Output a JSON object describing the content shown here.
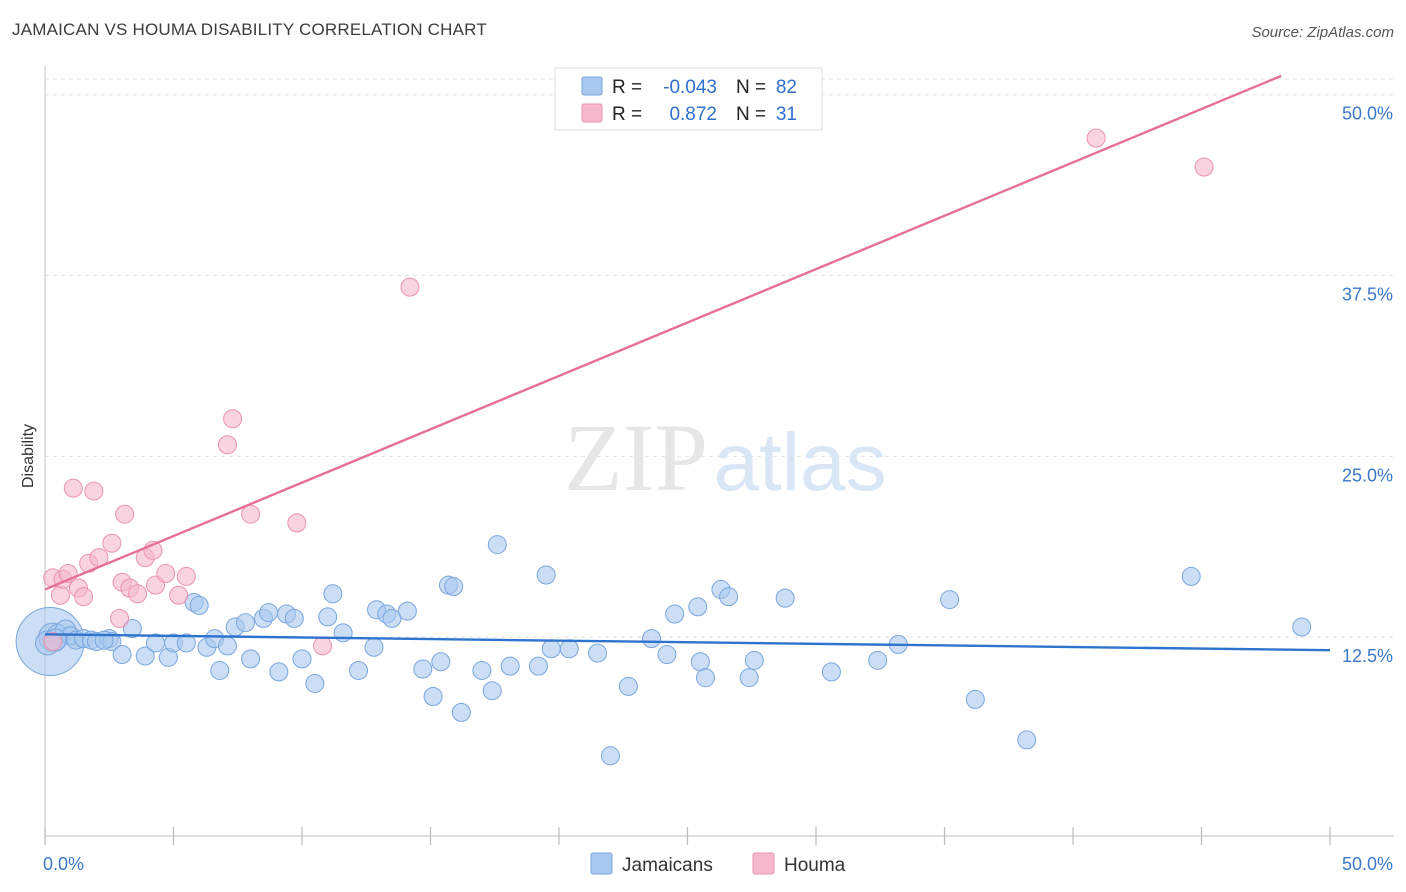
{
  "title": "JAMAICAN VS HOUMA DISABILITY CORRELATION CHART",
  "source": "Source: ZipAtlas.com",
  "watermark": {
    "zip": "ZIP",
    "atlas": "atlas"
  },
  "legend_top": {
    "rows": [
      {
        "r_label": "R =",
        "r_value": "-0.043",
        "n_label": "N =",
        "n_value": "82",
        "color": "#a9c8ef"
      },
      {
        "r_label": "R =",
        "r_value": "0.872",
        "n_label": "N =",
        "n_value": "31",
        "color": "#f5b8cc"
      }
    ]
  },
  "legend_bottom": {
    "items": [
      {
        "label": "Jamaicans",
        "color": "#a9c8ef"
      },
      {
        "label": "Houma",
        "color": "#f5b8cc"
      }
    ]
  },
  "chart_data": {
    "type": "scatter",
    "title": "JAMAICAN VS HOUMA DISABILITY CORRELATION CHART",
    "xlabel": "",
    "ylabel": "Disability",
    "xlim": [
      0,
      50
    ],
    "ylim": [
      0,
      51.5
    ],
    "x_tick_labels": [
      {
        "value": 0,
        "label": "0.0%"
      },
      {
        "value": 50,
        "label": "50.0%"
      }
    ],
    "y_ticks": [
      {
        "value": 12.5,
        "label": "12.5%"
      },
      {
        "value": 25,
        "label": "25.0%"
      },
      {
        "value": 37.5,
        "label": "37.5%"
      },
      {
        "value": 50,
        "label": "50.0%"
      }
    ],
    "series": [
      {
        "name": "Jamaicans",
        "color": "#a9c8ef",
        "stroke": "#7aa6de",
        "trend_color": "#2e74cf",
        "trend": {
          "x": [
            0,
            50
          ],
          "y": [
            12.7,
            11.6
          ]
        },
        "points": [
          [
            0.2,
            12.2
          ],
          [
            0.3,
            12.5
          ],
          [
            0.5,
            12.7
          ],
          [
            0.8,
            13.0
          ],
          [
            1.0,
            12.6
          ],
          [
            1.2,
            12.3
          ],
          [
            1.5,
            12.4
          ],
          [
            1.8,
            12.3
          ],
          [
            2.0,
            12.2
          ],
          [
            2.5,
            12.4
          ],
          [
            2.6,
            12.2
          ],
          [
            3.0,
            11.3
          ],
          [
            3.4,
            13.1
          ],
          [
            3.9,
            11.2
          ],
          [
            4.3,
            12.1
          ],
          [
            4.8,
            11.1
          ],
          [
            5.0,
            12.1
          ],
          [
            5.5,
            12.1
          ],
          [
            5.8,
            14.9
          ],
          [
            6.0,
            14.7
          ],
          [
            6.3,
            11.8
          ],
          [
            6.6,
            12.4
          ],
          [
            6.8,
            10.2
          ],
          [
            7.1,
            11.9
          ],
          [
            7.4,
            13.2
          ],
          [
            7.8,
            13.5
          ],
          [
            8.0,
            11.0
          ],
          [
            8.5,
            13.8
          ],
          [
            8.7,
            14.2
          ],
          [
            9.1,
            10.1
          ],
          [
            9.4,
            14.1
          ],
          [
            9.7,
            13.8
          ],
          [
            10.0,
            11.0
          ],
          [
            10.5,
            9.3
          ],
          [
            11.0,
            13.9
          ],
          [
            11.2,
            15.5
          ],
          [
            11.6,
            12.8
          ],
          [
            12.2,
            10.2
          ],
          [
            12.8,
            11.8
          ],
          [
            12.9,
            14.4
          ],
          [
            13.3,
            14.1
          ],
          [
            13.5,
            13.8
          ],
          [
            14.1,
            14.3
          ],
          [
            14.7,
            10.3
          ],
          [
            15.1,
            8.4
          ],
          [
            15.4,
            10.8
          ],
          [
            15.7,
            16.1
          ],
          [
            15.9,
            16.0
          ],
          [
            16.2,
            7.3
          ],
          [
            17.0,
            10.2
          ],
          [
            17.4,
            8.8
          ],
          [
            17.6,
            18.9
          ],
          [
            18.1,
            10.5
          ],
          [
            19.2,
            10.5
          ],
          [
            19.5,
            16.8
          ],
          [
            19.7,
            11.7
          ],
          [
            20.4,
            11.7
          ],
          [
            21.5,
            11.4
          ],
          [
            22.0,
            4.3
          ],
          [
            22.7,
            9.1
          ],
          [
            23.6,
            12.4
          ],
          [
            24.2,
            11.3
          ],
          [
            24.5,
            14.1
          ],
          [
            25.4,
            14.6
          ],
          [
            25.5,
            10.8
          ],
          [
            25.7,
            9.7
          ],
          [
            26.3,
            15.8
          ],
          [
            26.6,
            15.3
          ],
          [
            27.4,
            9.7
          ],
          [
            27.6,
            10.9
          ],
          [
            28.8,
            15.2
          ],
          [
            30.6,
            10.1
          ],
          [
            32.4,
            10.9
          ],
          [
            33.2,
            12.0
          ],
          [
            35.2,
            15.1
          ],
          [
            36.2,
            8.2
          ],
          [
            38.2,
            5.4
          ],
          [
            44.6,
            16.7
          ],
          [
            48.9,
            13.2
          ],
          [
            0.1,
            12.1
          ],
          [
            0.4,
            12.3
          ],
          [
            2.3,
            12.3
          ]
        ],
        "sizes": [
          34,
          14,
          10,
          10,
          9,
          9,
          9,
          9,
          9,
          9,
          9,
          9,
          9,
          9,
          9,
          9,
          9,
          9,
          9,
          9,
          9,
          9,
          9,
          9,
          9,
          9,
          9,
          9,
          9,
          9,
          9,
          9,
          9,
          9,
          9,
          9,
          9,
          9,
          9,
          9,
          9,
          9,
          9,
          9,
          9,
          9,
          9,
          9,
          9,
          9,
          9,
          9,
          9,
          9,
          9,
          9,
          9,
          9,
          9,
          9,
          9,
          9,
          9,
          9,
          9,
          9,
          9,
          9,
          9,
          9,
          9,
          9,
          9,
          9,
          9,
          9,
          9,
          9,
          9,
          12,
          11,
          9
        ]
      },
      {
        "name": "Houma",
        "color": "#f5b8cc",
        "stroke": "#ec93b0",
        "trend_color": "#e46f98",
        "trend": {
          "x": [
            0,
            48.1
          ],
          "y": [
            15.8,
            51.3
          ]
        },
        "points": [
          [
            0.3,
            12.2
          ],
          [
            0.3,
            16.6
          ],
          [
            0.6,
            15.4
          ],
          [
            0.7,
            16.5
          ],
          [
            0.9,
            16.9
          ],
          [
            1.1,
            22.8
          ],
          [
            1.3,
            15.9
          ],
          [
            1.5,
            15.3
          ],
          [
            1.7,
            17.6
          ],
          [
            1.9,
            22.6
          ],
          [
            2.1,
            18.0
          ],
          [
            2.6,
            19.0
          ],
          [
            2.9,
            13.8
          ],
          [
            3.0,
            16.3
          ],
          [
            3.1,
            21.0
          ],
          [
            3.3,
            15.9
          ],
          [
            3.6,
            15.5
          ],
          [
            3.9,
            18.0
          ],
          [
            4.2,
            18.5
          ],
          [
            4.3,
            16.1
          ],
          [
            4.7,
            16.9
          ],
          [
            5.2,
            15.4
          ],
          [
            5.5,
            16.7
          ],
          [
            7.1,
            25.8
          ],
          [
            7.3,
            27.6
          ],
          [
            8.0,
            21.0
          ],
          [
            9.8,
            20.4
          ],
          [
            10.8,
            11.9
          ],
          [
            14.2,
            36.7
          ],
          [
            40.9,
            47.0
          ],
          [
            45.1,
            45.0
          ]
        ],
        "sizes": [
          9,
          9,
          9,
          9,
          9,
          9,
          9,
          9,
          9,
          9,
          9,
          9,
          9,
          9,
          9,
          9,
          9,
          9,
          9,
          9,
          9,
          9,
          9,
          9,
          9,
          9,
          9,
          9,
          9,
          9,
          9
        ]
      }
    ]
  }
}
